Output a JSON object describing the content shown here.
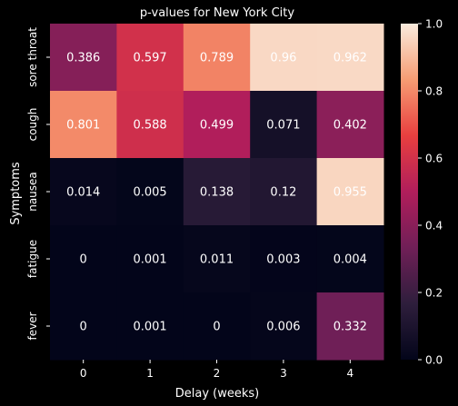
{
  "chart_data": {
    "type": "heatmap",
    "title": "p-values for New York City",
    "xlabel": "Delay (weeks)",
    "ylabel": "Symptoms",
    "x_categories": [
      "0",
      "1",
      "2",
      "3",
      "4"
    ],
    "y_categories": [
      "sore throat",
      "cough",
      "nausea",
      "fatigue",
      "fever"
    ],
    "values": [
      [
        0.386,
        0.597,
        0.789,
        0.96,
        0.962
      ],
      [
        0.801,
        0.588,
        0.499,
        0.071,
        0.402
      ],
      [
        0.014,
        0.005,
        0.138,
        0.12,
        0.955
      ],
      [
        0,
        0.001,
        0.011,
        0.003,
        0.004
      ],
      [
        0,
        0.001,
        0,
        0.006,
        0.332
      ]
    ],
    "value_labels": [
      [
        "0.386",
        "0.597",
        "0.789",
        "0.96",
        "0.962"
      ],
      [
        "0.801",
        "0.588",
        "0.499",
        "0.071",
        "0.402"
      ],
      [
        "0.014",
        "0.005",
        "0.138",
        "0.12",
        "0.955"
      ],
      [
        "0",
        "0.001",
        "0.011",
        "0.003",
        "0.004"
      ],
      [
        "0",
        "0.001",
        "0",
        "0.006",
        "0.332"
      ]
    ],
    "colorbar": {
      "range": [
        0.0,
        1.0
      ],
      "ticks": [
        "0.0",
        "0.2",
        "0.4",
        "0.6",
        "0.8",
        "1.0"
      ],
      "colormap": "rocket",
      "color_stops": [
        "#03051a",
        "#2e1e3c",
        "#701f57",
        "#b11e5b",
        "#e83f3f",
        "#f69c73",
        "#faebdd"
      ]
    }
  }
}
